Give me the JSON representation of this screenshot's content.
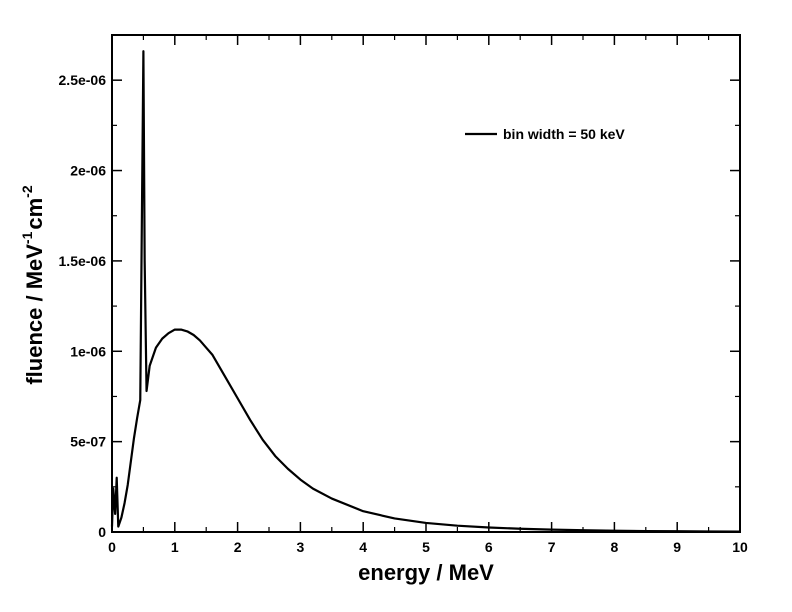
{
  "chart_data": {
    "type": "line",
    "title": "",
    "xlabel": "energy / MeV",
    "ylabel": {
      "base": "fluence / MeV",
      "sup1": "-1",
      "mid": "cm",
      "sup2": "-2"
    },
    "xlim": [
      0,
      10
    ],
    "ylim": [
      0,
      2.75e-06
    ],
    "grid": false,
    "legend_position": "top-right",
    "x_ticks": [
      {
        "value": 0,
        "label": "0"
      },
      {
        "value": 1,
        "label": "1"
      },
      {
        "value": 2,
        "label": "2"
      },
      {
        "value": 3,
        "label": "3"
      },
      {
        "value": 4,
        "label": "4"
      },
      {
        "value": 5,
        "label": "5"
      },
      {
        "value": 6,
        "label": "6"
      },
      {
        "value": 7,
        "label": "7"
      },
      {
        "value": 8,
        "label": "8"
      },
      {
        "value": 9,
        "label": "9"
      },
      {
        "value": 10,
        "label": "10"
      }
    ],
    "y_ticks": [
      {
        "value": 0,
        "label": "0"
      },
      {
        "value": 5e-07,
        "label": "5e-07"
      },
      {
        "value": 1e-06,
        "label": "1e-06"
      },
      {
        "value": 1.5e-06,
        "label": "1.5e-06"
      },
      {
        "value": 2e-06,
        "label": "2e-06"
      },
      {
        "value": 2.5e-06,
        "label": "2.5e-06"
      }
    ],
    "series": [
      {
        "name": "bin width = 50 keV",
        "color": "#000000",
        "x": [
          0,
          0.02,
          0.05,
          0.075,
          0.1,
          0.15,
          0.2,
          0.25,
          0.3,
          0.35,
          0.4,
          0.45,
          0.475,
          0.5,
          0.52,
          0.55,
          0.6,
          0.7,
          0.8,
          0.9,
          1.0,
          1.1,
          1.2,
          1.3,
          1.4,
          1.5,
          1.6,
          1.8,
          2.0,
          2.2,
          2.4,
          2.6,
          2.8,
          3.0,
          3.2,
          3.5,
          4.0,
          4.5,
          5.0,
          5.5,
          6.0,
          6.5,
          7.0,
          7.5,
          8.0,
          8.5,
          9.0,
          9.5,
          10.0
        ],
        "y": [
          3e-08,
          2.4e-07,
          1e-07,
          3e-07,
          3e-08,
          8e-08,
          1.6e-07,
          2.6e-07,
          3.9e-07,
          5.2e-07,
          6.3e-07,
          7.3e-07,
          1.7e-06,
          2.66e-06,
          1.5e-06,
          7.8e-07,
          9.2e-07,
          1.02e-06,
          1.07e-06,
          1.1e-06,
          1.12e-06,
          1.12e-06,
          1.11e-06,
          1.09e-06,
          1.06e-06,
          1.02e-06,
          9.8e-07,
          8.6e-07,
          7.4e-07,
          6.2e-07,
          5.1e-07,
          4.2e-07,
          3.5e-07,
          2.9e-07,
          2.4e-07,
          1.85e-07,
          1.15e-07,
          7.5e-08,
          5e-08,
          3.5e-08,
          2.5e-08,
          1.8e-08,
          1.3e-08,
          1e-08,
          7e-09,
          5e-09,
          4e-09,
          3e-09,
          2e-09
        ]
      }
    ]
  }
}
